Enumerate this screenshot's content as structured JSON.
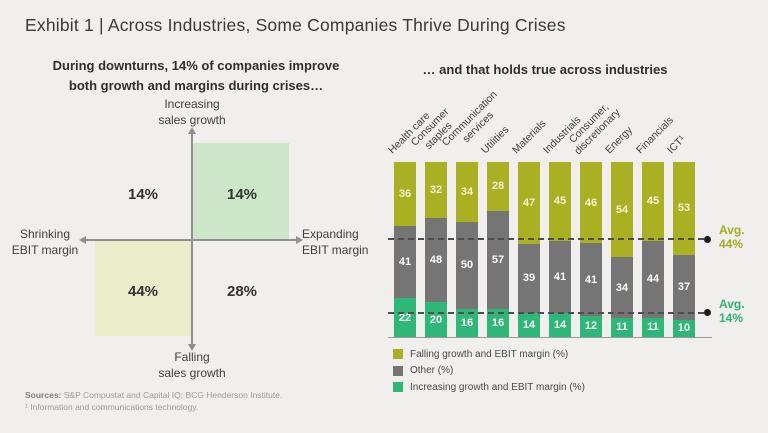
{
  "title": "Exhibit 1 | Across Industries, Some Companies Thrive During Crises",
  "left_panel": {
    "subtitle": "During downturns, 14% of companies improve\nboth growth and margins during crises…"
  },
  "right_panel": {
    "subtitle": "… and that holds true across industries"
  },
  "chart_data": [
    {
      "type": "quadrant",
      "axes": {
        "up": "Increasing\nsales growth",
        "down": "Falling\nsales growth",
        "left": "Shrinking\nEBIT margin",
        "right": "Expanding\nEBIT margin"
      },
      "values": {
        "top_left": "14%",
        "top_right": "14%",
        "bottom_left": "44%",
        "bottom_right": "28%"
      },
      "highlights": {
        "top_right": "#cce7c8",
        "bottom_left": "#e9edc9"
      }
    },
    {
      "type": "bar",
      "stacked": true,
      "unit": "%",
      "ylim": [
        0,
        100
      ],
      "categories": [
        "Health care",
        "Consumer\nstaples",
        "Communication\nservices",
        "Utilities",
        "Materials",
        "Industrials",
        "Consumer,\ndiscretionary",
        "Energy",
        "Financials",
        "ICT¹"
      ],
      "series": [
        {
          "name": "Falling growth and EBIT margin (%)",
          "color": "#a9b122",
          "label_color": "#f4f2d2",
          "values": [
            36,
            32,
            34,
            28,
            47,
            45,
            46,
            54,
            45,
            53
          ]
        },
        {
          "name": "Other (%)",
          "color": "#757575",
          "label_color": "#ffffff",
          "values": [
            41,
            48,
            50,
            57,
            39,
            41,
            41,
            34,
            44,
            37
          ]
        },
        {
          "name": "Increasing growth and EBIT margin (%)",
          "color": "#2eb878",
          "label_color": "#ffffff",
          "values": [
            22,
            20,
            16,
            16,
            14,
            14,
            12,
            11,
            11,
            10
          ]
        }
      ],
      "averages": [
        {
          "label": "Avg.\n44%",
          "value": 44,
          "from": "top",
          "color": "#a3ab1e"
        },
        {
          "label": "Avg.\n14%",
          "value": 14,
          "from": "bottom",
          "color": "#2bb573"
        }
      ],
      "legend_position": "bottom-left"
    }
  ],
  "footer": {
    "sources_label": "Sources:",
    "sources_text": " S&P Compustat and Capital IQ; BCG Henderson Institute.",
    "footnote": "¹ Information and communications technology."
  }
}
